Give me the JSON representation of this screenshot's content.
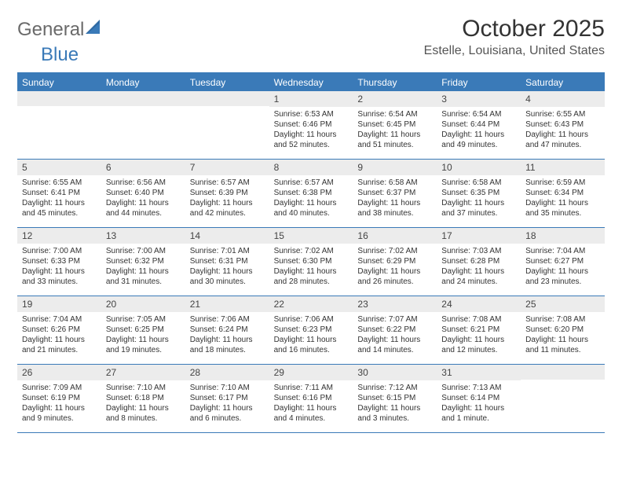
{
  "brand": {
    "part1": "General",
    "part2": "Blue"
  },
  "title": "October 2025",
  "location": "Estelle, Louisiana, United States",
  "colors": {
    "header_bg": "#3a7ab8",
    "daynum_bg": "#ececec",
    "page_bg": "#ffffff",
    "text": "#333333",
    "brand_gray": "#6a6a6a",
    "brand_blue": "#3a7ab8"
  },
  "day_labels": [
    "Sunday",
    "Monday",
    "Tuesday",
    "Wednesday",
    "Thursday",
    "Friday",
    "Saturday"
  ],
  "weeks": [
    [
      null,
      null,
      null,
      {
        "n": "1",
        "sunrise": "6:53 AM",
        "sunset": "6:46 PM",
        "day_h": 11,
        "day_m": 52
      },
      {
        "n": "2",
        "sunrise": "6:54 AM",
        "sunset": "6:45 PM",
        "day_h": 11,
        "day_m": 51
      },
      {
        "n": "3",
        "sunrise": "6:54 AM",
        "sunset": "6:44 PM",
        "day_h": 11,
        "day_m": 49
      },
      {
        "n": "4",
        "sunrise": "6:55 AM",
        "sunset": "6:43 PM",
        "day_h": 11,
        "day_m": 47
      }
    ],
    [
      {
        "n": "5",
        "sunrise": "6:55 AM",
        "sunset": "6:41 PM",
        "day_h": 11,
        "day_m": 45
      },
      {
        "n": "6",
        "sunrise": "6:56 AM",
        "sunset": "6:40 PM",
        "day_h": 11,
        "day_m": 44
      },
      {
        "n": "7",
        "sunrise": "6:57 AM",
        "sunset": "6:39 PM",
        "day_h": 11,
        "day_m": 42
      },
      {
        "n": "8",
        "sunrise": "6:57 AM",
        "sunset": "6:38 PM",
        "day_h": 11,
        "day_m": 40
      },
      {
        "n": "9",
        "sunrise": "6:58 AM",
        "sunset": "6:37 PM",
        "day_h": 11,
        "day_m": 38
      },
      {
        "n": "10",
        "sunrise": "6:58 AM",
        "sunset": "6:35 PM",
        "day_h": 11,
        "day_m": 37
      },
      {
        "n": "11",
        "sunrise": "6:59 AM",
        "sunset": "6:34 PM",
        "day_h": 11,
        "day_m": 35
      }
    ],
    [
      {
        "n": "12",
        "sunrise": "7:00 AM",
        "sunset": "6:33 PM",
        "day_h": 11,
        "day_m": 33
      },
      {
        "n": "13",
        "sunrise": "7:00 AM",
        "sunset": "6:32 PM",
        "day_h": 11,
        "day_m": 31
      },
      {
        "n": "14",
        "sunrise": "7:01 AM",
        "sunset": "6:31 PM",
        "day_h": 11,
        "day_m": 30
      },
      {
        "n": "15",
        "sunrise": "7:02 AM",
        "sunset": "6:30 PM",
        "day_h": 11,
        "day_m": 28
      },
      {
        "n": "16",
        "sunrise": "7:02 AM",
        "sunset": "6:29 PM",
        "day_h": 11,
        "day_m": 26
      },
      {
        "n": "17",
        "sunrise": "7:03 AM",
        "sunset": "6:28 PM",
        "day_h": 11,
        "day_m": 24
      },
      {
        "n": "18",
        "sunrise": "7:04 AM",
        "sunset": "6:27 PM",
        "day_h": 11,
        "day_m": 23
      }
    ],
    [
      {
        "n": "19",
        "sunrise": "7:04 AM",
        "sunset": "6:26 PM",
        "day_h": 11,
        "day_m": 21
      },
      {
        "n": "20",
        "sunrise": "7:05 AM",
        "sunset": "6:25 PM",
        "day_h": 11,
        "day_m": 19
      },
      {
        "n": "21",
        "sunrise": "7:06 AM",
        "sunset": "6:24 PM",
        "day_h": 11,
        "day_m": 18
      },
      {
        "n": "22",
        "sunrise": "7:06 AM",
        "sunset": "6:23 PM",
        "day_h": 11,
        "day_m": 16
      },
      {
        "n": "23",
        "sunrise": "7:07 AM",
        "sunset": "6:22 PM",
        "day_h": 11,
        "day_m": 14
      },
      {
        "n": "24",
        "sunrise": "7:08 AM",
        "sunset": "6:21 PM",
        "day_h": 11,
        "day_m": 12
      },
      {
        "n": "25",
        "sunrise": "7:08 AM",
        "sunset": "6:20 PM",
        "day_h": 11,
        "day_m": 11
      }
    ],
    [
      {
        "n": "26",
        "sunrise": "7:09 AM",
        "sunset": "6:19 PM",
        "day_h": 11,
        "day_m": 9
      },
      {
        "n": "27",
        "sunrise": "7:10 AM",
        "sunset": "6:18 PM",
        "day_h": 11,
        "day_m": 8
      },
      {
        "n": "28",
        "sunrise": "7:10 AM",
        "sunset": "6:17 PM",
        "day_h": 11,
        "day_m": 6
      },
      {
        "n": "29",
        "sunrise": "7:11 AM",
        "sunset": "6:16 PM",
        "day_h": 11,
        "day_m": 4
      },
      {
        "n": "30",
        "sunrise": "7:12 AM",
        "sunset": "6:15 PM",
        "day_h": 11,
        "day_m": 3
      },
      {
        "n": "31",
        "sunrise": "7:13 AM",
        "sunset": "6:14 PM",
        "day_h": 11,
        "day_m": 1
      },
      null
    ]
  ],
  "labels": {
    "sunrise": "Sunrise:",
    "sunset": "Sunset:",
    "daylight": "Daylight:",
    "hours": "hours",
    "and": "and",
    "minutes": "minutes.",
    "minute": "minute."
  }
}
